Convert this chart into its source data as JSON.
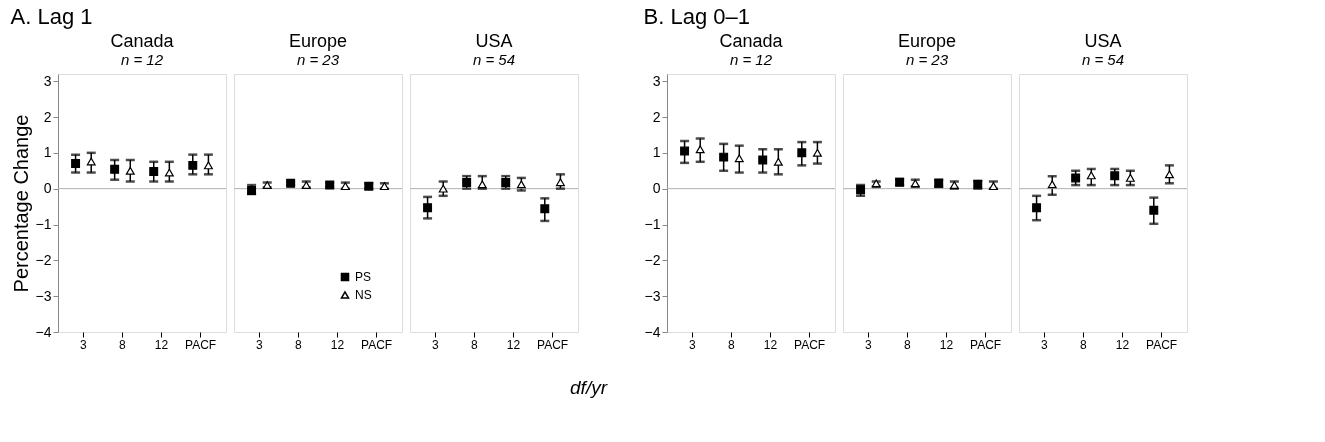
{
  "chart_data": [
    {
      "type": "scatter",
      "title": "Canada",
      "subtitle": "n = 12",
      "annotations": [
        "A. Lag 1"
      ],
      "ylabel": "Percentage Change",
      "categories": [
        "3",
        "8",
        "12",
        "PACF"
      ],
      "ylim": [
        -4,
        3.2
      ],
      "yticks": [
        -4,
        -3,
        -2,
        -1,
        0,
        1,
        2,
        3
      ],
      "grid": false,
      "legend": false,
      "ref_lines": [
        {
          "axis": "y",
          "value": 0,
          "color": "#b0b0b0"
        }
      ],
      "series": [
        {
          "color": "#000000",
          "marker": "square",
          "values": [
            0.7,
            0.54,
            0.48,
            0.65
          ],
          "errors": [
            [
              0.45,
              0.95
            ],
            [
              0.25,
              0.8
            ],
            [
              0.2,
              0.75
            ],
            [
              0.4,
              0.95
            ]
          ]
        },
        {
          "color": "#ffffff",
          "marker": "triangle",
          "values": [
            0.76,
            0.5,
            0.45,
            0.65
          ],
          "errors": [
            [
              0.45,
              1.0
            ],
            [
              0.2,
              0.8
            ],
            [
              0.2,
              0.75
            ],
            [
              0.4,
              0.95
            ]
          ]
        }
      ]
    },
    {
      "type": "scatter",
      "title": "Europe",
      "subtitle": "n = 23",
      "categories": [
        "3",
        "8",
        "12",
        "PACF"
      ],
      "ylim": [
        -4,
        3.2
      ],
      "tick_labels": "x",
      "grid": false,
      "legend": "bottom right",
      "ref_lines": [
        {
          "axis": "y",
          "value": 0,
          "color": "#b0b0b0"
        }
      ],
      "series": [
        {
          "name": "PS",
          "color": "#000000",
          "marker": "square",
          "values": [
            -0.05,
            0.15,
            0.1,
            0.07
          ],
          "errors": [
            [
              -0.15,
              0.1
            ],
            [
              0.1,
              0.2
            ],
            [
              0.05,
              0.17
            ],
            [
              0,
              0.15
            ]
          ]
        },
        {
          "name": "NS",
          "color": "#ffffff",
          "marker": "triangle",
          "values": [
            0.1,
            0.1,
            0.07,
            0.07
          ],
          "errors": [
            [
              0.03,
              0.17
            ],
            [
              0.03,
              0.2
            ],
            [
              0,
              0.17
            ],
            [
              0,
              0.15
            ]
          ]
        }
      ]
    },
    {
      "type": "scatter",
      "title": "USA",
      "subtitle": "n = 54",
      "xlabel": "df/yr",
      "categories": [
        "3",
        "8",
        "12",
        "PACF"
      ],
      "ylim": [
        -4,
        3.2
      ],
      "tick_labels": "x",
      "grid": false,
      "legend": false,
      "ref_lines": [
        {
          "axis": "y",
          "value": 0,
          "color": "#b0b0b0"
        }
      ],
      "series": [
        {
          "color": "#000000",
          "marker": "square",
          "values": [
            -0.53,
            0.17,
            0.17,
            -0.56
          ],
          "errors": [
            [
              -0.83,
              -0.23
            ],
            [
              0,
              0.35
            ],
            [
              0,
              0.35
            ],
            [
              -0.9,
              -0.27
            ]
          ]
        },
        {
          "color": "#ffffff",
          "marker": "triangle",
          "values": [
            0.0,
            0.12,
            0.12,
            0.18
          ],
          "errors": [
            [
              -0.2,
              0.2
            ],
            [
              0,
              0.35
            ],
            [
              -0.05,
              0.3
            ],
            [
              0,
              0.4
            ]
          ]
        }
      ]
    },
    {
      "type": "scatter",
      "title": "Canada",
      "subtitle": "n = 12",
      "annotations": [
        "B. Lag 0–1"
      ],
      "categories": [
        "3",
        "8",
        "12",
        "PACF"
      ],
      "ylim": [
        -4,
        3.2
      ],
      "yticks": [
        -4,
        -3,
        -2,
        -1,
        0,
        1,
        2,
        3
      ],
      "grid": false,
      "legend": false,
      "ref_lines": [
        {
          "axis": "y",
          "value": 0,
          "color": "#b0b0b0"
        }
      ],
      "series": [
        {
          "color": "#000000",
          "marker": "square",
          "values": [
            1.05,
            0.88,
            0.8,
            1.0
          ],
          "errors": [
            [
              0.72,
              1.33
            ],
            [
              0.5,
              1.25
            ],
            [
              0.45,
              1.1
            ],
            [
              0.65,
              1.3
            ]
          ]
        },
        {
          "color": "#ffffff",
          "marker": "triangle",
          "values": [
            1.1,
            0.85,
            0.75,
            1.0
          ],
          "errors": [
            [
              0.75,
              1.4
            ],
            [
              0.45,
              1.2
            ],
            [
              0.4,
              1.1
            ],
            [
              0.7,
              1.3
            ]
          ]
        }
      ]
    },
    {
      "type": "scatter",
      "title": "Europe",
      "subtitle": "n = 23",
      "categories": [
        "3",
        "8",
        "12",
        "PACF"
      ],
      "ylim": [
        -4,
        3.2
      ],
      "tick_labels": "x",
      "grid": false,
      "legend": false,
      "ref_lines": [
        {
          "axis": "y",
          "value": 0,
          "color": "#b0b0b0"
        }
      ],
      "series": [
        {
          "color": "#000000",
          "marker": "square",
          "values": [
            -0.03,
            0.18,
            0.15,
            0.12
          ],
          "errors": [
            [
              -0.2,
              0.1
            ],
            [
              0.1,
              0.27
            ],
            [
              0.05,
              0.25
            ],
            [
              0,
              0.22
            ]
          ]
        },
        {
          "color": "#ffffff",
          "marker": "triangle",
          "values": [
            0.15,
            0.15,
            0.1,
            0.07
          ],
          "errors": [
            [
              0.05,
              0.2
            ],
            [
              0.05,
              0.25
            ],
            [
              0,
              0.2
            ],
            [
              0,
              0.2
            ]
          ]
        }
      ]
    },
    {
      "type": "scatter",
      "title": "USA",
      "subtitle": "n = 54",
      "categories": [
        "3",
        "8",
        "12",
        "PACF"
      ],
      "ylim": [
        -4,
        3.2
      ],
      "tick_labels": "x",
      "grid": false,
      "legend": false,
      "ref_lines": [
        {
          "axis": "y",
          "value": 0,
          "color": "#b0b0b0"
        }
      ],
      "series": [
        {
          "color": "#000000",
          "marker": "square",
          "values": [
            -0.53,
            0.3,
            0.36,
            -0.6
          ],
          "errors": [
            [
              -0.88,
              -0.2
            ],
            [
              0.1,
              0.5
            ],
            [
              0.1,
              0.55
            ],
            [
              -0.98,
              -0.25
            ]
          ]
        },
        {
          "color": "#ffffff",
          "marker": "triangle",
          "values": [
            0.12,
            0.37,
            0.3,
            0.4
          ],
          "errors": [
            [
              -0.17,
              0.35
            ],
            [
              0.1,
              0.55
            ],
            [
              0.1,
              0.5
            ],
            [
              0.15,
              0.65
            ]
          ]
        }
      ]
    }
  ]
}
